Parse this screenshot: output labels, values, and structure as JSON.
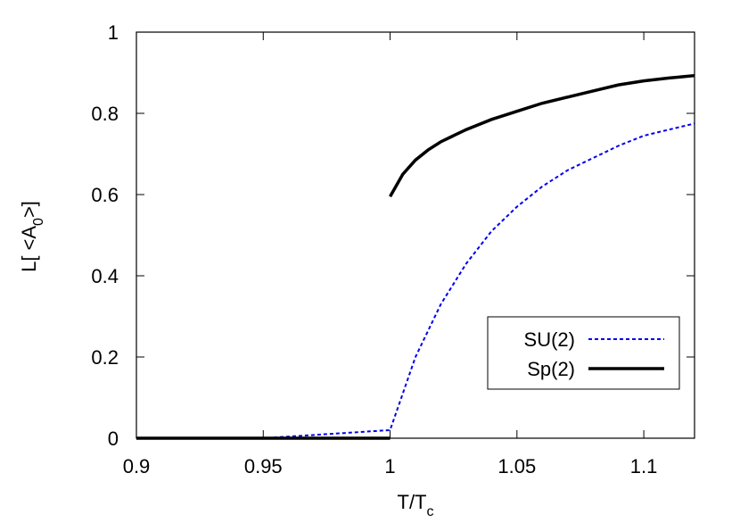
{
  "chart_data": {
    "type": "line",
    "xlabel": [
      "T/T",
      "c"
    ],
    "ylabel": [
      "L[ <A",
      "0",
      ">]"
    ],
    "xlim": [
      0.9,
      1.12
    ],
    "xticks": [
      0.9,
      0.95,
      1,
      1.05,
      1.1
    ],
    "ylim": [
      0,
      1
    ],
    "yticks": [
      0,
      0.2,
      0.4,
      0.6,
      0.8,
      1
    ],
    "legend": "lower right",
    "series": [
      {
        "name": "SU(2)",
        "color": "#0000ee",
        "dash": true,
        "x": [
          0.9,
          0.95,
          1.0,
          1.005,
          1.01,
          1.02,
          1.03,
          1.04,
          1.05,
          1.06,
          1.07,
          1.08,
          1.09,
          1.1,
          1.11,
          1.12
        ],
        "values": [
          0,
          0,
          0.02,
          0.11,
          0.2,
          0.33,
          0.43,
          0.51,
          0.57,
          0.62,
          0.66,
          0.69,
          0.72,
          0.745,
          0.76,
          0.775
        ]
      },
      {
        "name": "Sp(2)",
        "color": "#000000",
        "dash": false,
        "x": [
          0.9,
          0.95,
          1.0,
          1.0,
          1.0,
          1.005,
          1.01,
          1.015,
          1.02,
          1.03,
          1.04,
          1.05,
          1.06,
          1.07,
          1.08,
          1.09,
          1.1,
          1.11,
          1.12
        ],
        "values": [
          0,
          0,
          0,
          null,
          0.595,
          0.65,
          0.685,
          0.71,
          0.73,
          0.76,
          0.785,
          0.805,
          0.825,
          0.84,
          0.855,
          0.87,
          0.88,
          0.887,
          0.893
        ]
      }
    ]
  }
}
